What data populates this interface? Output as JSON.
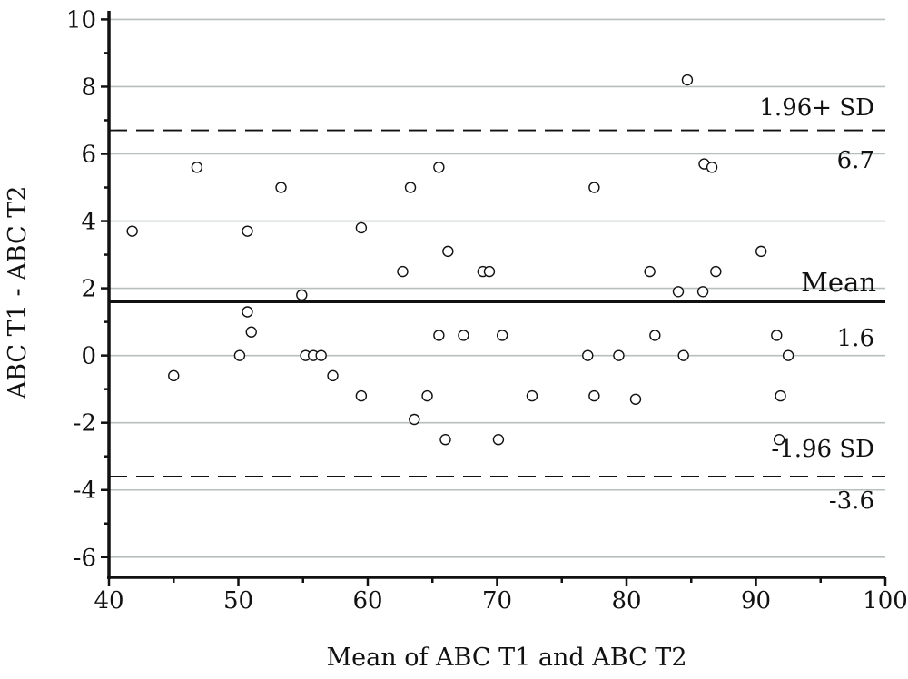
{
  "chart_data": {
    "type": "scatter",
    "title": "",
    "xlabel": "Mean of ABC T1 and ABC T2",
    "ylabel": "ABC T1 - ABC T2",
    "xlim": [
      40,
      100
    ],
    "ylim": [
      -6.6,
      10.2
    ],
    "x_ticks": [
      "40",
      "50",
      "60",
      "70",
      "80",
      "90",
      "100"
    ],
    "y_ticks": [
      "-6",
      "-4",
      "-2",
      "0",
      "2",
      "4",
      "6",
      "8",
      "10"
    ],
    "grid": "horizontal",
    "mean_line": {
      "label": "Mean",
      "value_label": "1.6",
      "value": 1.6
    },
    "upper_limit": {
      "label": "1.96+ SD",
      "value_label": "6.7",
      "value": 6.7
    },
    "lower_limit": {
      "label": "-1.96 SD",
      "value_label": "-3.6",
      "value": -3.6
    },
    "points": [
      {
        "x": 41.8,
        "y": 3.7
      },
      {
        "x": 45.0,
        "y": -0.6
      },
      {
        "x": 46.8,
        "y": 5.6
      },
      {
        "x": 50.1,
        "y": 0.0
      },
      {
        "x": 50.7,
        "y": 3.7
      },
      {
        "x": 50.7,
        "y": 1.3
      },
      {
        "x": 51.0,
        "y": 0.7
      },
      {
        "x": 53.3,
        "y": 5.0
      },
      {
        "x": 54.9,
        "y": 1.8
      },
      {
        "x": 55.2,
        "y": 0.0
      },
      {
        "x": 55.8,
        "y": 0.0
      },
      {
        "x": 56.4,
        "y": 0.0
      },
      {
        "x": 57.3,
        "y": -0.6
      },
      {
        "x": 59.5,
        "y": 3.8
      },
      {
        "x": 59.5,
        "y": -1.2
      },
      {
        "x": 62.7,
        "y": 2.5
      },
      {
        "x": 63.3,
        "y": 5.0
      },
      {
        "x": 63.6,
        "y": -1.9
      },
      {
        "x": 64.6,
        "y": -1.2
      },
      {
        "x": 65.5,
        "y": 5.6
      },
      {
        "x": 65.5,
        "y": 0.6
      },
      {
        "x": 66.0,
        "y": -2.5
      },
      {
        "x": 66.2,
        "y": 3.1
      },
      {
        "x": 67.4,
        "y": 0.6
      },
      {
        "x": 68.9,
        "y": 2.5
      },
      {
        "x": 69.4,
        "y": 2.5
      },
      {
        "x": 70.1,
        "y": -2.5
      },
      {
        "x": 70.4,
        "y": 0.6
      },
      {
        "x": 72.7,
        "y": -1.2
      },
      {
        "x": 77.0,
        "y": 0.0
      },
      {
        "x": 77.5,
        "y": 5.0
      },
      {
        "x": 77.5,
        "y": -1.2
      },
      {
        "x": 79.4,
        "y": 0.0
      },
      {
        "x": 80.7,
        "y": -1.3
      },
      {
        "x": 81.8,
        "y": 2.5
      },
      {
        "x": 82.2,
        "y": 0.6
      },
      {
        "x": 84.0,
        "y": 1.9
      },
      {
        "x": 84.4,
        "y": 0.0
      },
      {
        "x": 84.7,
        "y": 8.2
      },
      {
        "x": 85.9,
        "y": 1.9
      },
      {
        "x": 86.0,
        "y": 5.7
      },
      {
        "x": 86.6,
        "y": 5.6
      },
      {
        "x": 86.9,
        "y": 2.5
      },
      {
        "x": 90.4,
        "y": 3.1
      },
      {
        "x": 91.6,
        "y": 0.6
      },
      {
        "x": 91.8,
        "y": -2.5
      },
      {
        "x": 91.9,
        "y": -1.2
      },
      {
        "x": 92.5,
        "y": 0.0
      }
    ]
  }
}
